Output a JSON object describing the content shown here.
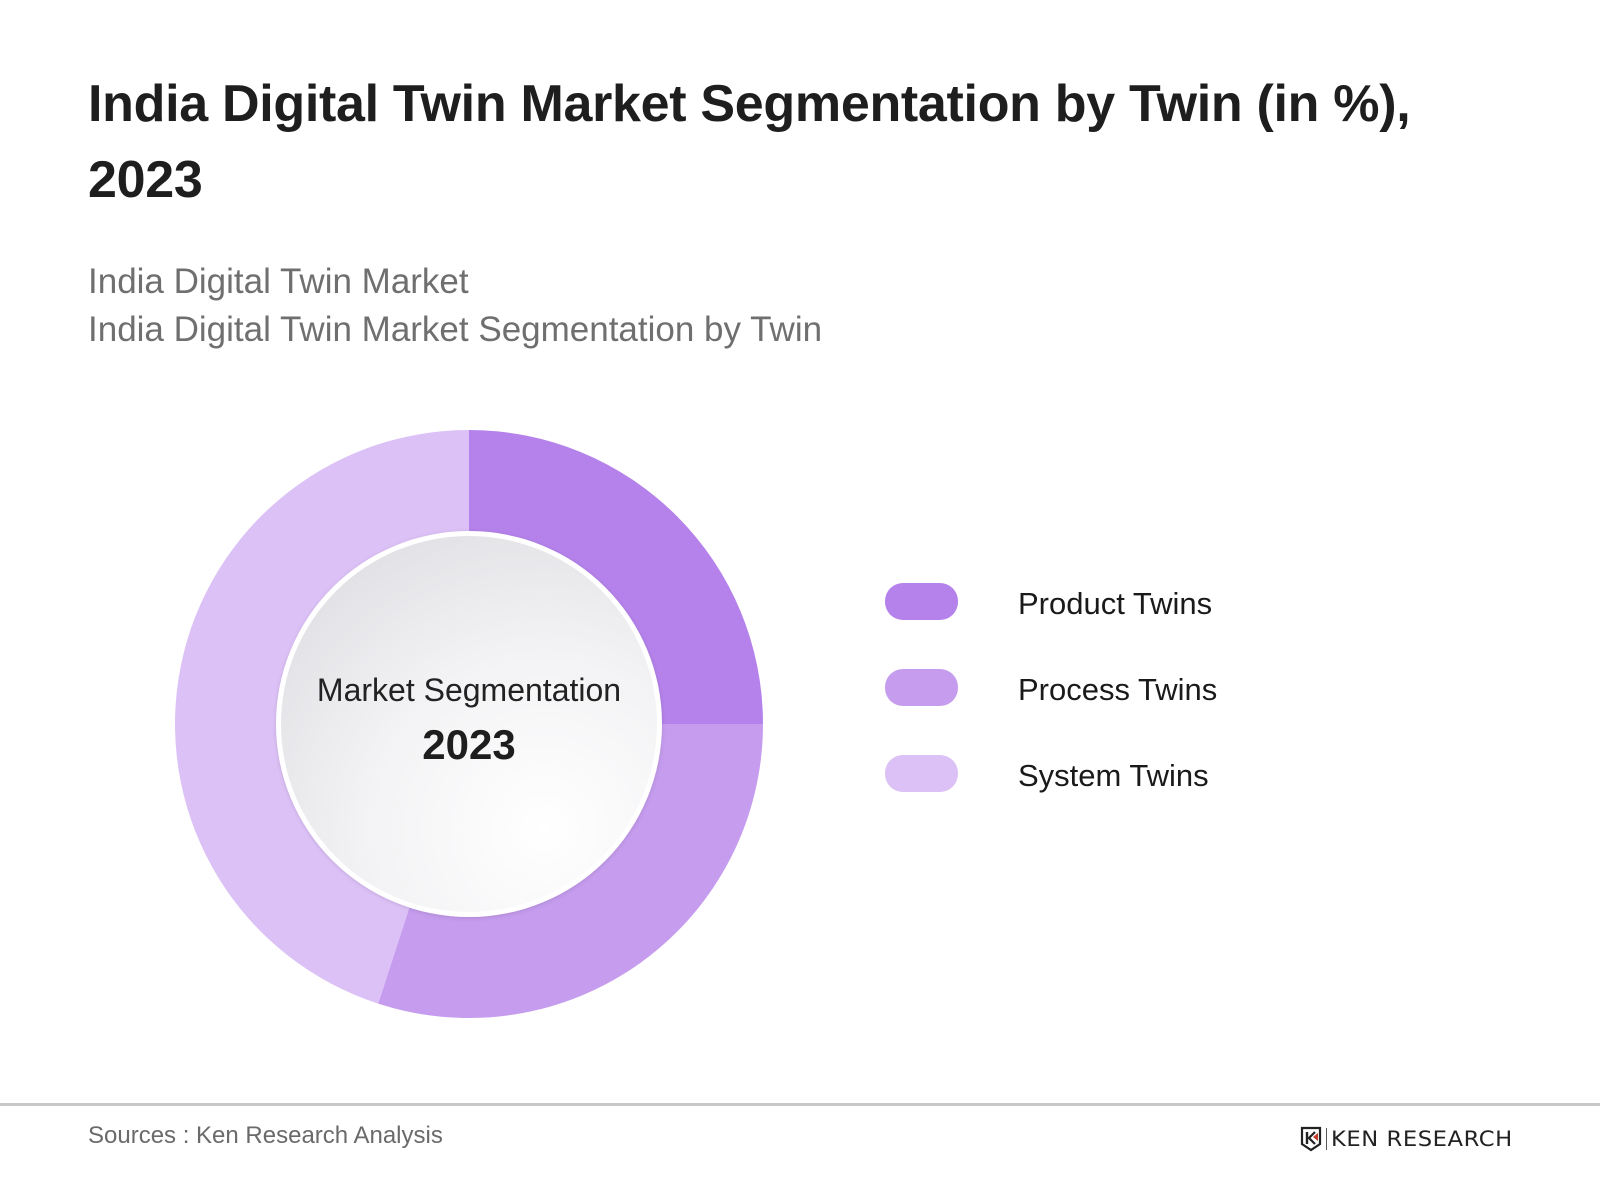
{
  "header": {
    "title": "India Digital Twin Market Segmentation by Twin (in %), 2023",
    "subtitle_lines": [
      "India Digital Twin Market",
      "India Digital Twin Market Segmentation by Twin"
    ]
  },
  "center": {
    "title": "Market Segmentation",
    "year": "2023"
  },
  "legend": [
    {
      "label": "Product Twins",
      "color": "#b482ea"
    },
    {
      "label": "Process Twins",
      "color": "#c59cee"
    },
    {
      "label": "System Twins",
      "color": "#dcc1f6"
    }
  ],
  "footer": {
    "source": "Sources : Ken Research Analysis",
    "brand": "KEN RESEARCH",
    "brand_icon": "ken-research-logo-icon"
  },
  "chart_data": {
    "type": "pie",
    "subtype": "donut",
    "title": "India Digital Twin Market Segmentation by Twin (in %), 2023",
    "subtitle": "India Digital Twin Market / India Digital Twin Market Segmentation by Twin",
    "center_label": "Market Segmentation 2023",
    "categories": [
      "Product Twins",
      "Process Twins",
      "System Twins"
    ],
    "values": [
      25,
      30,
      45
    ],
    "unit": "%",
    "colors": [
      "#b482ea",
      "#c59cee",
      "#dcc1f6"
    ],
    "start_angle_deg": 0,
    "direction": "clockwise",
    "legend_position": "right",
    "data_labels_shown": false
  }
}
